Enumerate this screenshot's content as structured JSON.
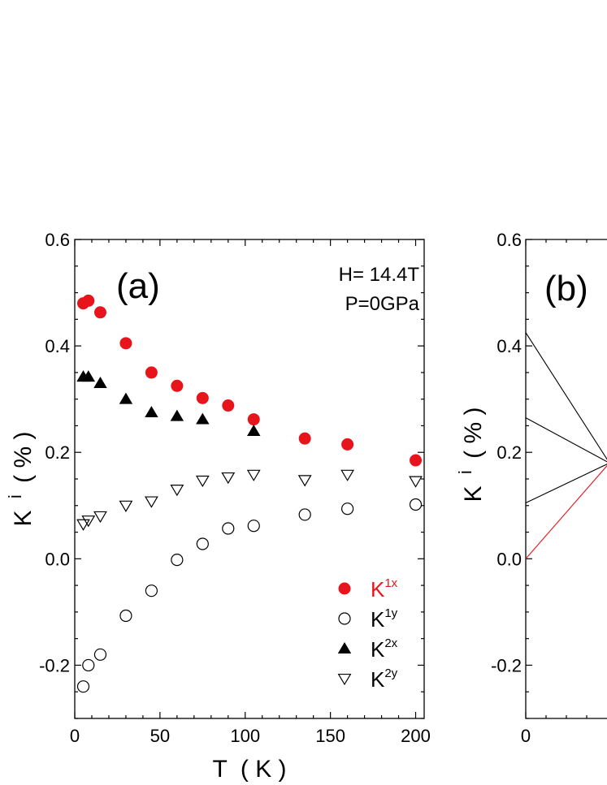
{
  "chart_data": [
    {
      "type": "scatter",
      "panel_label": "(a)",
      "annotations": [
        "H= 14.4T",
        "P=0GPa"
      ],
      "xlabel": "T  ( K )",
      "ylabel_main": "K",
      "ylabel_sup": "i",
      "ylabel_unit": "( % )",
      "xlim": [
        0,
        205
      ],
      "ylim": [
        -0.3,
        0.6
      ],
      "xticks": [
        0,
        50,
        100,
        150,
        200
      ],
      "yticks": [
        -0.2,
        0.0,
        0.2,
        0.4,
        0.6
      ],
      "xtick_labels": [
        "0",
        "50",
        "100",
        "150",
        "200"
      ],
      "ytick_labels": [
        "-0.2",
        "0.0",
        "0.2",
        "0.4",
        "0.6"
      ],
      "legend_position": "bottom-right",
      "series": [
        {
          "name": "K1x",
          "label_main": "K",
          "label_sup": "1x",
          "marker": "filled-circle",
          "color": "#e8141c",
          "x": [
            5,
            8,
            15,
            30,
            45,
            60,
            75,
            90,
            105,
            135,
            160,
            200
          ],
          "y": [
            0.48,
            0.485,
            0.463,
            0.405,
            0.35,
            0.325,
            0.302,
            0.288,
            0.262,
            0.226,
            0.215,
            0.185
          ]
        },
        {
          "name": "K1y",
          "label_main": "K",
          "label_sup": "1y",
          "marker": "open-circle",
          "color": "#000000",
          "x": [
            5,
            8,
            15,
            30,
            45,
            60,
            75,
            90,
            105,
            135,
            160,
            200
          ],
          "y": [
            -0.24,
            -0.2,
            -0.18,
            -0.107,
            -0.06,
            -0.002,
            0.028,
            0.057,
            0.062,
            0.083,
            0.094,
            0.102
          ]
        },
        {
          "name": "K2x",
          "label_main": "K",
          "label_sup": "2x",
          "marker": "filled-triangle-up",
          "color": "#000000",
          "x": [
            5,
            8,
            15,
            30,
            45,
            60,
            75,
            105
          ],
          "y": [
            0.342,
            0.342,
            0.33,
            0.3,
            0.275,
            0.268,
            0.262,
            0.24
          ]
        },
        {
          "name": "K2y",
          "label_main": "K",
          "label_sup": "2y",
          "marker": "open-triangle-down",
          "color": "#000000",
          "x": [
            5,
            8,
            15,
            30,
            45,
            60,
            75,
            90,
            105,
            135,
            160,
            200
          ],
          "y": [
            0.065,
            0.072,
            0.08,
            0.1,
            0.108,
            0.13,
            0.147,
            0.153,
            0.158,
            0.148,
            0.158,
            0.146
          ]
        }
      ]
    },
    {
      "type": "line",
      "panel_label": "(b)",
      "ylabel_main": "K",
      "ylabel_sup": "i",
      "ylabel_unit": "( % )",
      "ylim": [
        -0.3,
        0.6
      ],
      "yticks": [
        -0.2,
        0.0,
        0.2,
        0.4,
        0.6
      ],
      "ytick_labels": [
        "-0.2",
        "0.0",
        "0.2",
        "0.4",
        "0.6"
      ],
      "xtick_labels": [
        "0"
      ],
      "series": [
        {
          "name": "line-1",
          "color": "#000000",
          "x": [
            0,
            1
          ],
          "y": [
            0.425,
            0.18
          ]
        },
        {
          "name": "line-2",
          "color": "#000000",
          "x": [
            0,
            1
          ],
          "y": [
            0.265,
            0.18
          ]
        },
        {
          "name": "line-3",
          "color": "#000000",
          "x": [
            0,
            1
          ],
          "y": [
            0.105,
            0.18
          ]
        },
        {
          "name": "line-4",
          "color": "#e8141c",
          "x": [
            0,
            1
          ],
          "y": [
            0.0,
            0.18
          ]
        }
      ]
    }
  ]
}
